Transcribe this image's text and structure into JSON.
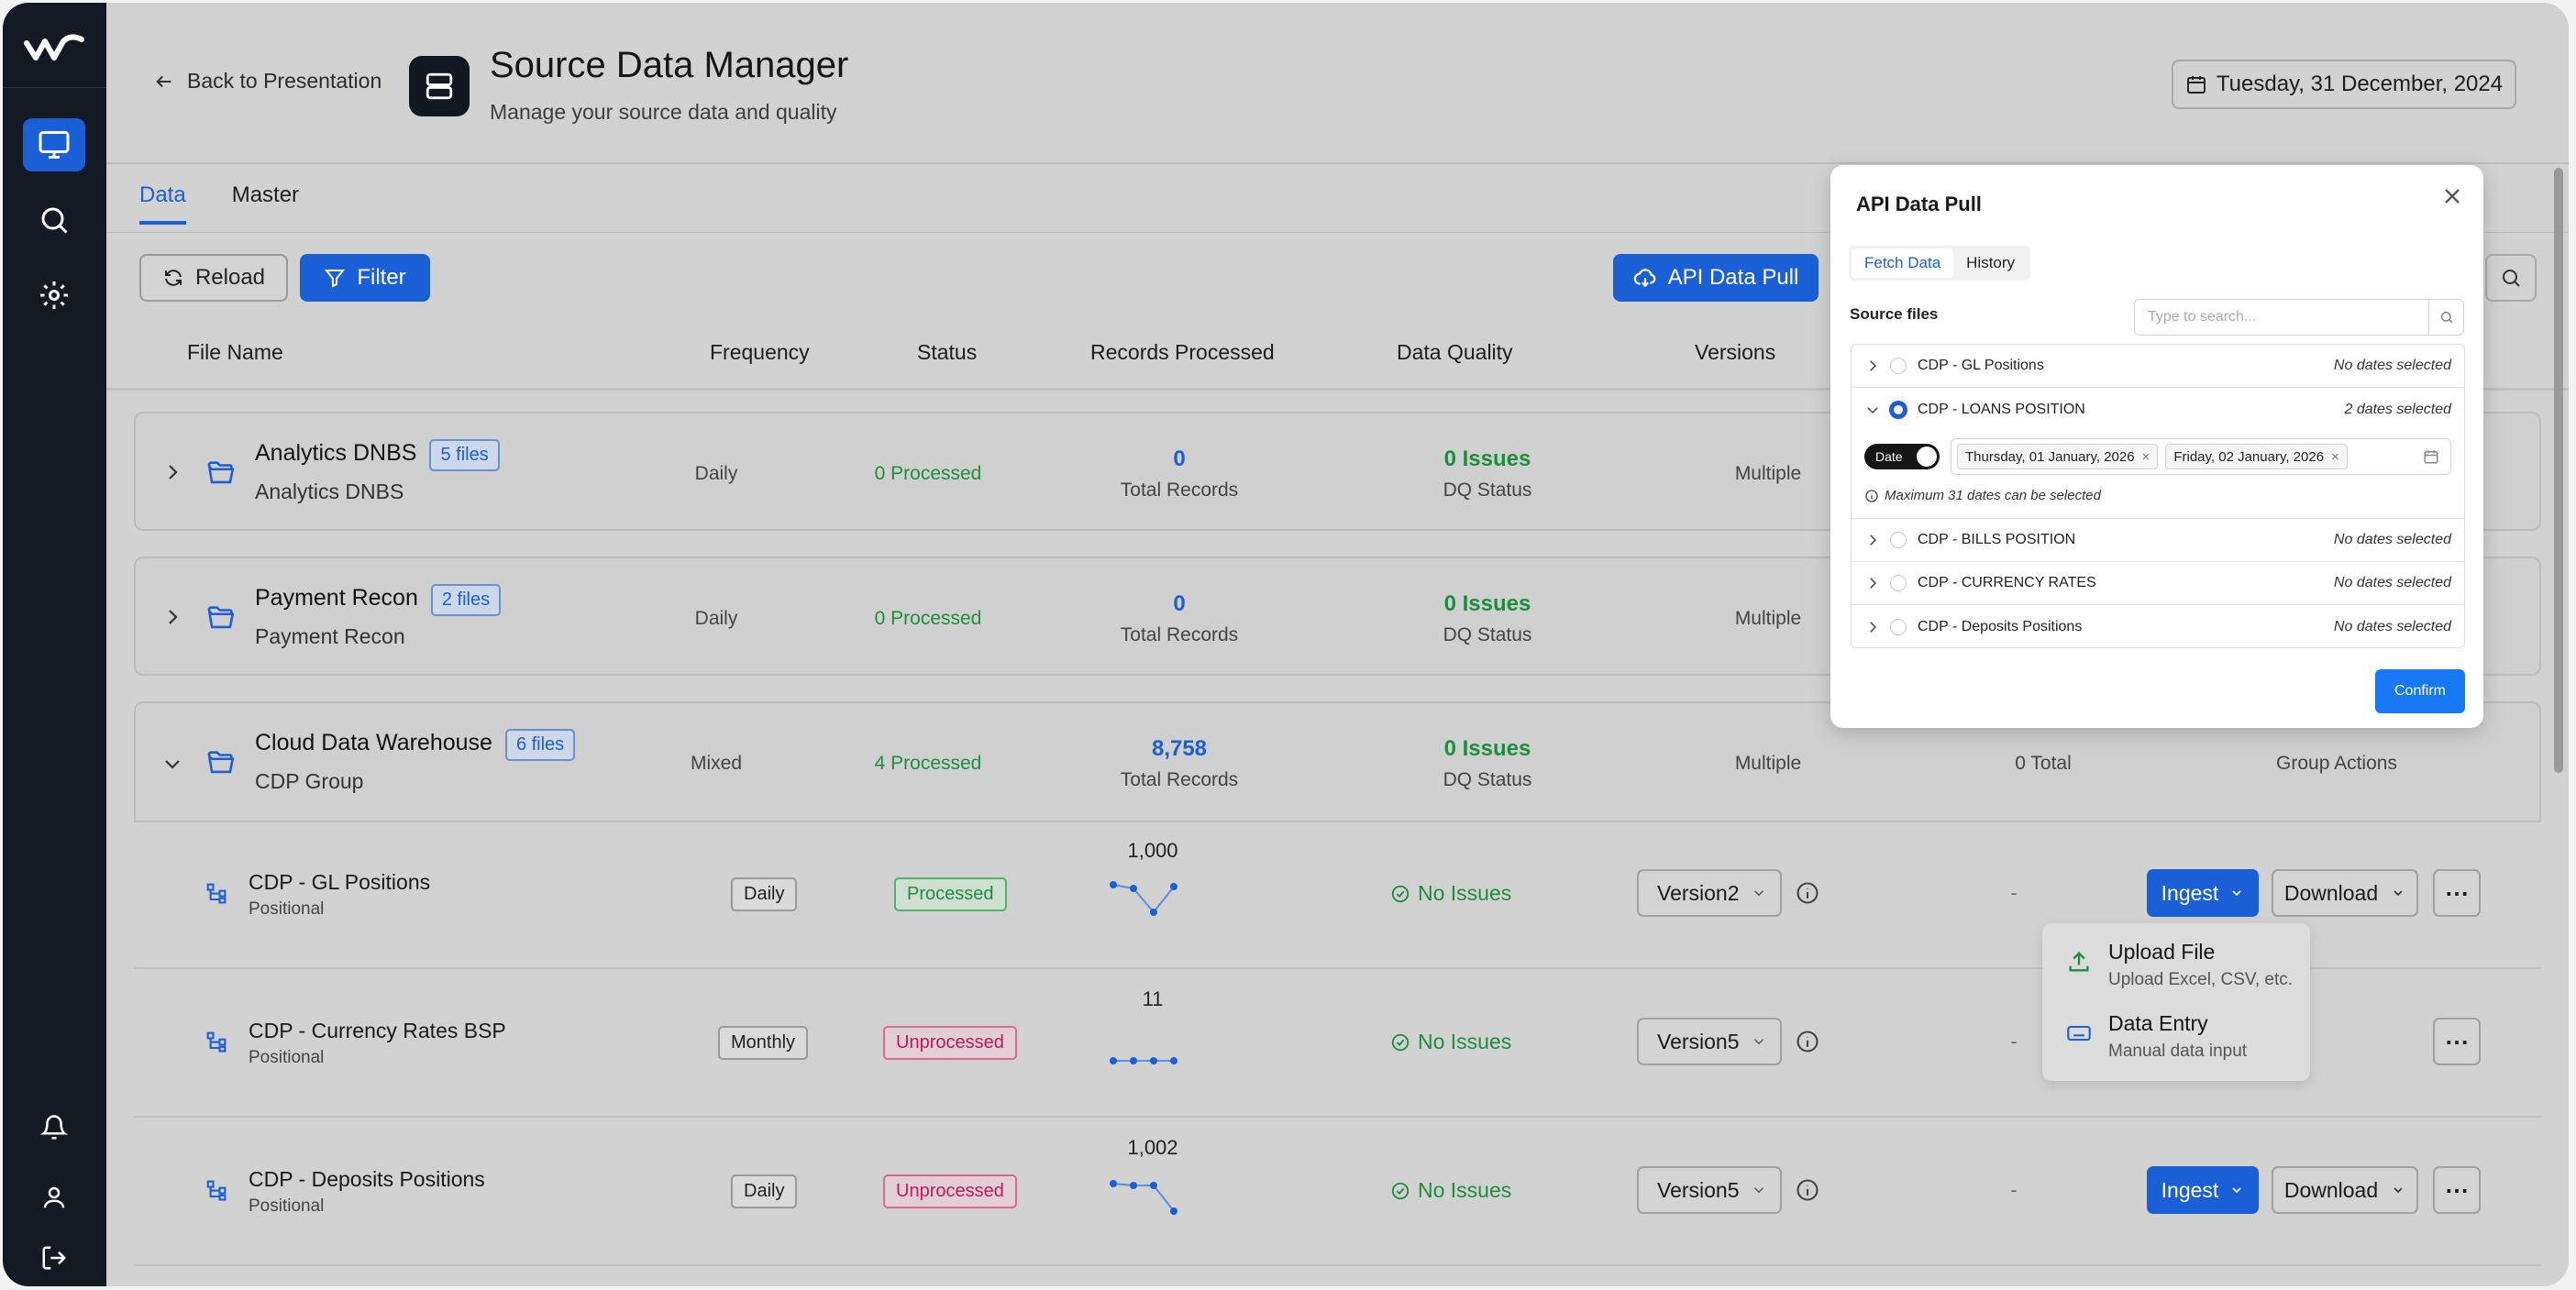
{
  "header": {
    "back_label": "Back to Presentation",
    "title": "Source Data Manager",
    "subtitle": "Manage your source data and quality",
    "date": "Tuesday, 31 December, 2024"
  },
  "tabs": [
    {
      "label": "Data"
    },
    {
      "label": "Master"
    }
  ],
  "toolbar": {
    "reload": "Reload",
    "filter": "Filter",
    "api_pull": "API Data Pull"
  },
  "columns": [
    "File Name",
    "Frequency",
    "Status",
    "Records Processed",
    "Data Quality",
    "Versions"
  ],
  "groups": [
    {
      "name": "Analytics DNBS",
      "files": "5 files",
      "sub": "Analytics DNBS",
      "frequency": "Daily",
      "status": "0 Processed",
      "records": "0",
      "records_label": "Total Records",
      "quality": "0 Issues",
      "quality_label": "DQ Status",
      "versions": "Multiple"
    },
    {
      "name": "Payment Recon",
      "files": "2 files",
      "sub": "Payment Recon",
      "frequency": "Daily",
      "status": "0 Processed",
      "records": "0",
      "records_label": "Total Records",
      "quality": "0 Issues",
      "quality_label": "DQ Status",
      "versions": "Multiple"
    },
    {
      "name": "Cloud Data Warehouse",
      "files": "6 files",
      "sub": "CDP Group",
      "frequency": "Mixed",
      "status": "4 Processed",
      "records": "8,758",
      "records_label": "Total Records",
      "quality": "0 Issues",
      "quality_label": "DQ Status",
      "versions": "Multiple",
      "total": "0 Total",
      "actions": "Group Actions"
    }
  ],
  "files": [
    {
      "name": "CDP - GL Positions",
      "type": "Positional",
      "frequency": "Daily",
      "status": "Processed",
      "records": "1,000",
      "quality": "No Issues",
      "version": "Version2",
      "dash": "-",
      "ingest": "Ingest",
      "download": "Download"
    },
    {
      "name": "CDP - Currency Rates BSP",
      "type": "Positional",
      "frequency": "Monthly",
      "status": "Unprocessed",
      "records": "11",
      "quality": "No Issues",
      "version": "Version5",
      "dash": "-"
    },
    {
      "name": "CDP - Deposits Positions",
      "type": "Positional",
      "frequency": "Daily",
      "status": "Unprocessed",
      "records": "1,002",
      "quality": "No Issues",
      "version": "Version5",
      "dash": "-",
      "ingest": "Ingest",
      "download": "Download"
    }
  ],
  "ingest_menu": [
    {
      "title": "Upload File",
      "sub": "Upload Excel, CSV, etc."
    },
    {
      "title": "Data Entry",
      "sub": "Manual data input"
    }
  ],
  "modal": {
    "title": "API Data Pull",
    "tabs": [
      "Fetch Data",
      "History"
    ],
    "source_label": "Source files",
    "search_placeholder": "Type to search...",
    "items": [
      {
        "name": "CDP - GL Positions",
        "state": "No dates selected"
      },
      {
        "name": "CDP - LOANS POSITION",
        "state": "2 dates selected"
      },
      {
        "name": "CDP - BILLS POSITION",
        "state": "No dates selected"
      },
      {
        "name": "CDP - CURRENCY RATES",
        "state": "No dates selected"
      },
      {
        "name": "CDP - Deposits Positions",
        "state": "No dates selected"
      }
    ],
    "toggle_label": "Date",
    "dates": [
      "Thursday, 01 January, 2026",
      "Friday, 02 January, 2026"
    ],
    "hint": "Maximum 31 dates can be selected",
    "confirm": "Confirm"
  },
  "colors": {
    "accent": "#1b5fd6",
    "sidebar": "#141a24",
    "success": "#1e8e3e",
    "danger": "#c2185b"
  }
}
